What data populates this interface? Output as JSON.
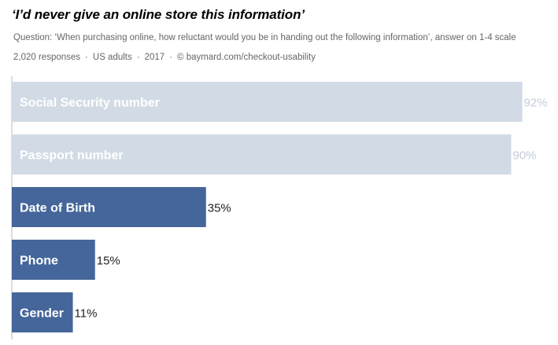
{
  "header": {
    "title": "‘I’d never give an online store this information’",
    "question": "Question: ‘When purchasing online, how reluctant would you be in handing out the following information’, answer on 1-4 scale",
    "responses": "2,020 responses",
    "population": "US adults",
    "year": "2017",
    "source": "© baymard.com/checkout-usability"
  },
  "chart_data": {
    "type": "bar",
    "orientation": "horizontal",
    "categories": [
      "Social Security number",
      "Passport number",
      "Date of Birth",
      "Phone",
      "Gender"
    ],
    "values": [
      92,
      90,
      35,
      15,
      11
    ],
    "value_labels": [
      "92%",
      "90%",
      "35%",
      "15%",
      "11%"
    ],
    "unit": "%",
    "xlim": [
      0,
      100
    ],
    "grid": false,
    "colors": {
      "highlight": [
        "#d2dbe5",
        "#d2dbe5",
        "#45669a",
        "#45669a",
        "#45669a"
      ],
      "value_text": [
        "#c2ccd8",
        "#c2ccd8",
        "#222222",
        "#222222",
        "#222222"
      ],
      "axis": "#bbbbbb"
    }
  }
}
